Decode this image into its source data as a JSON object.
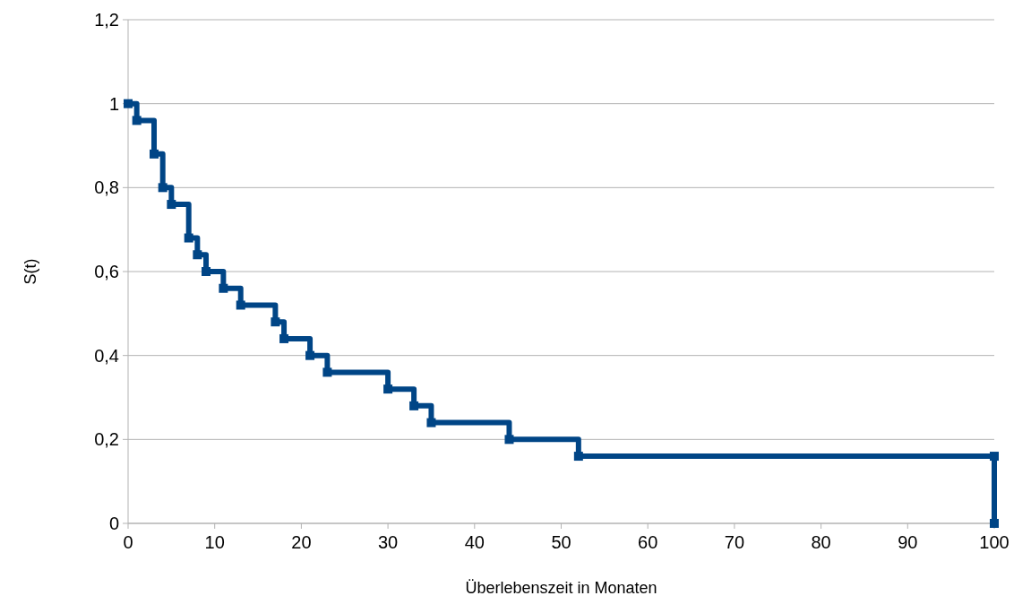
{
  "chart_data": {
    "type": "step",
    "xlabel": "Überlebenszeit in Monaten",
    "ylabel": "S(t)",
    "x": [
      0,
      1,
      3,
      4,
      5,
      7,
      8,
      9,
      11,
      13,
      17,
      18,
      21,
      23,
      30,
      33,
      35,
      44,
      52,
      100,
      100
    ],
    "series": [
      {
        "color": "#004586",
        "values": [
          1,
          0.96,
          0.88,
          0.8,
          0.76,
          0.68,
          0.64,
          0.6,
          0.56,
          0.52,
          0.48,
          0.44,
          0.4,
          0.36,
          0.32,
          0.28,
          0.24,
          0.2,
          0.16,
          0.16,
          0
        ]
      }
    ],
    "xlim": [
      0,
      100
    ],
    "xticks": [
      0,
      10,
      20,
      30,
      40,
      50,
      60,
      70,
      80,
      90,
      100
    ],
    "ylim": [
      0,
      1.2
    ],
    "yticks": [
      0,
      {
        "value": 0.2,
        "label": "0,2"
      },
      {
        "value": 0.4,
        "label": "0,4"
      },
      {
        "value": 0.6,
        "label": "0,6"
      },
      {
        "value": 0.8,
        "label": "0,8"
      },
      1,
      {
        "value": 1.2,
        "label": "1,2"
      }
    ],
    "grid": "y",
    "marker": "square",
    "line_style": "solid"
  }
}
